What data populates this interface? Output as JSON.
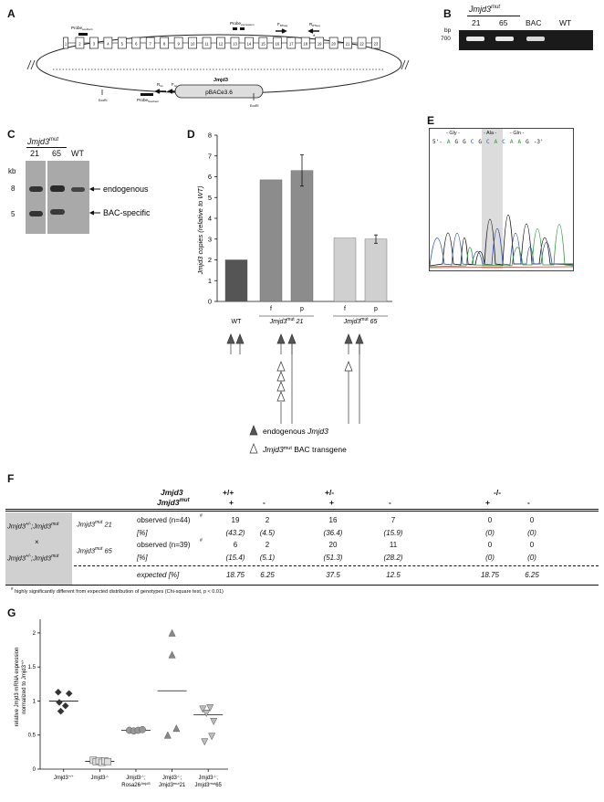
{
  "panels": {
    "A": "A",
    "B": "B",
    "C": "C",
    "D": "D",
    "E": "E",
    "F": "F",
    "G": "G"
  },
  "panelA": {
    "gene": "Jmjd3",
    "exons": [
      "1",
      "2",
      "3",
      "4",
      "5",
      "6",
      "7",
      "8",
      "9",
      "10",
      "11",
      "12",
      "13",
      "14",
      "15",
      "16",
      "17",
      "18",
      "19",
      "20",
      "21",
      "22",
      "23"
    ],
    "probe_southern_top": "Probe",
    "probe_southern_top_sub": "southern",
    "probe_expression": "Probe",
    "probe_expression_sub": "expression",
    "f_rtseq": "F",
    "f_rtseq_sub": "RTseq",
    "r_rtseq": "R",
    "r_rtseq_sub": "RTseq",
    "r_gt": "R",
    "r_gt_sub": "Gt",
    "f_gt": "F",
    "f_gt_sub": "Gt",
    "vector": "pBACe3.6",
    "probe_southern_bottom": "Probe",
    "probe_southern_bottom_sub": "Southern",
    "ecori_left": "EcoRI",
    "ecori_right": "EcoRI",
    "asterisk": "*"
  },
  "panelB": {
    "header": "Jmjd3",
    "header_sup": "mut",
    "lanes": [
      "21",
      "65",
      "BAC",
      "WT"
    ],
    "unit": "bp",
    "size": "700"
  },
  "panelC": {
    "header": "Jmjd3",
    "header_sup": "mut",
    "lanes": [
      "21",
      "65",
      "WT"
    ],
    "unit": "kb",
    "size_8": "8",
    "size_5": "5",
    "band_endogenous": "endogenous",
    "band_bac": "BAC-specific"
  },
  "panelE": {
    "header_gly": "- Gly -",
    "header_ala": "- Ala -",
    "header_gln": "- Gln -",
    "sequence": [
      "5'-",
      "A",
      "G",
      "G",
      "C",
      "G",
      "C",
      "A",
      "C",
      "A",
      "A",
      "G",
      "-3'"
    ]
  },
  "panelF": {
    "col_gene": "Jmjd3",
    "col_mut": "Jmjd3",
    "col_mut_sup": "mut",
    "genotypes": [
      "+/+",
      "+/-",
      "-/-"
    ],
    "transgene": [
      "+",
      "-",
      "+",
      "-",
      "+",
      "-"
    ],
    "cross_line1": "Jmjd3",
    "cross_line1_sup": "+/-",
    "cross_line1_b": ";Jmjd3",
    "cross_line1_sup2": "mut",
    "cross_x": "×",
    "cross_line2": "Jmjd3",
    "cross_line2_sup": "+/-",
    "cross_line2_b": ";Jmjd3",
    "cross_line2_sup2": "mut",
    "line21_name": "Jmjd3",
    "line21_sup": "mut",
    "line21_num": "21",
    "line21_obs_label": "observed (n=44)",
    "line21_obs": [
      "19",
      "2",
      "16",
      "7",
      "0",
      "0"
    ],
    "line21_pct_label": "[%]",
    "line21_pct": [
      "(43.2)",
      "(4.5)",
      "(36.4)",
      "(15.9)",
      "(0)",
      "(0)"
    ],
    "line65_name": "Jmjd3",
    "line65_sup": "mut",
    "line65_num": "65",
    "line65_obs_label": "observed (n=39)",
    "line65_obs": [
      "6",
      "2",
      "20",
      "11",
      "0",
      "0"
    ],
    "line65_pct_label": "[%]",
    "line65_pct": [
      "(15.4)",
      "(5.1)",
      "(51.3)",
      "(28.2)",
      "(0)",
      "(0)"
    ],
    "expected_label": "expected [%]",
    "expected": [
      "18.75",
      "6.25",
      "37.5",
      "12.5",
      "18.75",
      "6.25"
    ],
    "sig_mark": "#",
    "footnote": "highly significantly different from expected distribution of genotypes (Chi-square test, p < 0.01)"
  },
  "chart_data": [
    {
      "type": "bar",
      "panel": "D",
      "ylabel": "Jmjd3 copies (relative to WT)",
      "ylim": [
        0,
        8
      ],
      "yticks": [
        "0",
        "1",
        "2",
        "3",
        "4",
        "5",
        "6",
        "7",
        "8"
      ],
      "bars": [
        {
          "label": "WT",
          "value": 2.0,
          "error": 0,
          "color": "#555555"
        },
        {
          "label": "f",
          "value": 5.85,
          "error": 0,
          "color": "#8c8c8c"
        },
        {
          "label": "p",
          "value": 6.3,
          "error": 0.75,
          "color": "#8c8c8c"
        },
        {
          "label": "f",
          "value": 3.05,
          "error": 0,
          "color": "#d0d0d0"
        },
        {
          "label": "p",
          "value": 3.0,
          "error": 0.2,
          "color": "#d0d0d0"
        }
      ],
      "groups": [
        {
          "name": "WT",
          "sup": "",
          "num": ""
        },
        {
          "name": "Jmjd3",
          "sup": "mut",
          "num": "21"
        },
        {
          "name": "Jmjd3",
          "sup": "mut",
          "num": "65"
        }
      ],
      "legend": [
        {
          "marker": "filled-triangle",
          "label": "endogenous",
          "label_it": "Jmjd3"
        },
        {
          "marker": "open-triangle",
          "label_it": "Jmjd3",
          "sup": "mut",
          "label": "BAC transgene"
        }
      ]
    },
    {
      "type": "scatter",
      "panel": "G",
      "ylabel1": "relative Jmjd3 mRNA expression",
      "ylabel2": "normalized to Jmjd3",
      "ylabel2_sup": "+/+",
      "ylim": [
        0,
        2.2
      ],
      "yticks": [
        "0",
        "0.5",
        "1",
        "1.5",
        "2"
      ],
      "categories": [
        {
          "line1": "Jmjd3",
          "sup1": "+/+",
          "line2": ""
        },
        {
          "line1": "Jmjd3",
          "sup1": "-/-",
          "line2": ""
        },
        {
          "line1": "Jmjd3",
          "sup1": "-/-",
          "line1b": ";",
          "line2": "Rosa26",
          "sup2": "Jmjd3"
        },
        {
          "line1": "Jmjd3",
          "sup1": "-/-",
          "line1b": ";",
          "line2": "Jmjd3",
          "sup2": "mut",
          "line2b": "21"
        },
        {
          "line1": "Jmjd3",
          "sup1": "-/-",
          "line1b": ";",
          "line2": "Jmjd3",
          "sup2": "mut",
          "line2b": "65"
        }
      ],
      "series": [
        {
          "marker": "diamond",
          "color": "#333333",
          "points": [
            [
              0.85,
              1.13
            ],
            [
              1.15,
              1.11
            ],
            [
              0.88,
              0.98
            ],
            [
              1.05,
              0.93
            ],
            [
              0.92,
              0.85
            ]
          ],
          "median": 1.0
        },
        {
          "marker": "square",
          "color": "#dddddd",
          "points": [
            [
              1.82,
              0.13
            ],
            [
              1.9,
              0.11
            ],
            [
              1.98,
              0.12
            ],
            [
              2.06,
              0.1
            ],
            [
              2.14,
              0.12
            ],
            [
              2.22,
              0.11
            ]
          ],
          "median": 0.115
        },
        {
          "marker": "circle",
          "color": "#999999",
          "points": [
            [
              2.82,
              0.57
            ],
            [
              2.94,
              0.56
            ],
            [
              3.06,
              0.57
            ],
            [
              3.18,
              0.58
            ]
          ],
          "median": 0.57
        },
        {
          "marker": "triangle-up",
          "color": "#888888",
          "points": [
            [
              4.0,
              2.0
            ],
            [
              4.0,
              1.68
            ],
            [
              3.88,
              0.5
            ],
            [
              4.12,
              0.6
            ]
          ],
          "median": 1.15
        },
        {
          "marker": "triangle-down",
          "color": "#bbbbbb",
          "points": [
            [
              4.85,
              0.88
            ],
            [
              5.05,
              0.9
            ],
            [
              4.95,
              0.82
            ],
            [
              5.15,
              0.7
            ],
            [
              4.9,
              0.4
            ],
            [
              5.1,
              0.48
            ]
          ],
          "median": 0.8
        }
      ]
    }
  ]
}
